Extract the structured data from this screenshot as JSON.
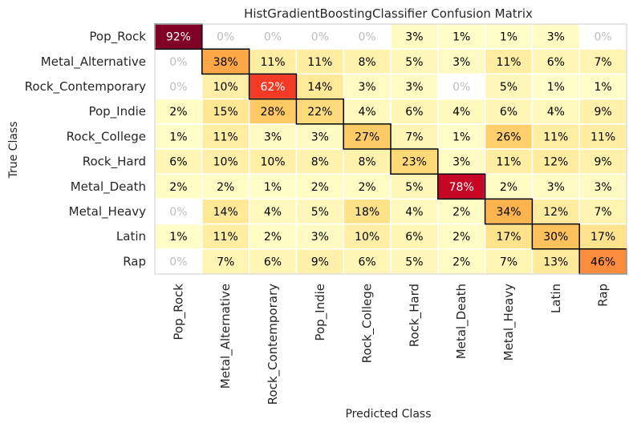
{
  "chart_data": {
    "type": "heatmap",
    "title": "HistGradientBoostingClassifier Confusion Matrix",
    "xlabel": "Predicted Class",
    "ylabel": "True Class",
    "classes": [
      "Pop_Rock",
      "Metal_Alternative",
      "Rock_Contemporary",
      "Pop_Indie",
      "Rock_College",
      "Rock_Hard",
      "Metal_Death",
      "Metal_Heavy",
      "Latin",
      "Rap"
    ],
    "x_tick_labels": [
      "Pop_Rock",
      "Metal_Alternative",
      "Rock_Contemporary",
      "Pop_Indie",
      "Rock_College",
      "Rock_Hard",
      "Metal_Death",
      "Metal_Heavy",
      "Latin",
      "Rap"
    ],
    "y_tick_labels": [
      "Pop_Rock",
      "Metal_Alternative",
      "Rock_Contemporary",
      "Pop_Indie",
      "Rock_College",
      "Rock_Hard",
      "Metal_Death",
      "Metal_Heavy",
      "Latin",
      "Rap"
    ],
    "values": [
      [
        92,
        0,
        0,
        0,
        0,
        3,
        1,
        1,
        3,
        0
      ],
      [
        0,
        38,
        11,
        11,
        8,
        5,
        3,
        11,
        6,
        7
      ],
      [
        0,
        10,
        62,
        14,
        3,
        3,
        0,
        5,
        1,
        1
      ],
      [
        2,
        15,
        28,
        22,
        4,
        6,
        4,
        6,
        4,
        9
      ],
      [
        1,
        11,
        3,
        3,
        27,
        7,
        1,
        26,
        11,
        11
      ],
      [
        6,
        10,
        10,
        8,
        8,
        23,
        3,
        11,
        12,
        9
      ],
      [
        2,
        2,
        1,
        2,
        2,
        5,
        78,
        2,
        3,
        3
      ],
      [
        0,
        14,
        4,
        5,
        18,
        4,
        2,
        34,
        12,
        7
      ],
      [
        1,
        11,
        2,
        3,
        10,
        6,
        2,
        17,
        30,
        17
      ],
      [
        0,
        7,
        6,
        9,
        6,
        5,
        2,
        7,
        13,
        46
      ]
    ],
    "value_format": "percent",
    "colormap": "YlOrRd",
    "zero_cell_color": "#ffffff",
    "zero_text_color": "#bdbdbd",
    "diagonal_outline": true,
    "grid": false
  }
}
